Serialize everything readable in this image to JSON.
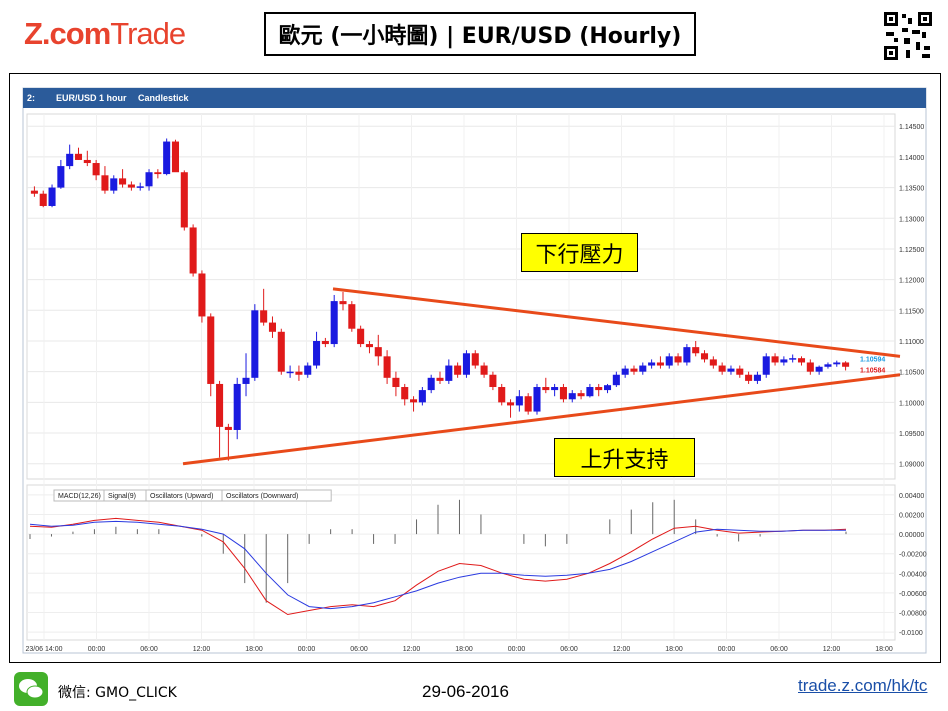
{
  "brand": {
    "z": "Z.com",
    "trade": "Trade"
  },
  "header": {
    "title": "歐元 (一小時圖) | EUR/USD  (Hourly)"
  },
  "toolbar": {
    "symbol": "EUR/USD",
    "timeframe": "1 hour",
    "chart_style": "Candlestick",
    "index": "2:"
  },
  "annotations": {
    "resistance": "下行壓力",
    "support": "上升支持"
  },
  "price_labels": {
    "ask": "1.10594",
    "bid": "1.10584"
  },
  "indicator_legend": [
    "MACD(12,26)",
    "Signal(9)",
    "Oscillators (Upward)",
    "Oscillators (Downward)"
  ],
  "footer": {
    "wechat_label": "微信: GMO_CLICK",
    "date": "29-06-2016",
    "url": "trade.z.com/hk/tc"
  },
  "colors": {
    "brand": "#e8432e",
    "up_candle": "#1a1ae0",
    "down_candle": "#e01a1a",
    "trendline": "#e84a1a",
    "callout_bg": "#ffff00"
  },
  "chart_data": [
    {
      "type": "candlestick",
      "title": "EUR/USD 1 hour Candlestick",
      "y_ticks": [
        "1.14500",
        "1.14000",
        "1.13500",
        "1.13000",
        "1.12500",
        "1.12000",
        "1.11500",
        "1.11000",
        "1.10500",
        "1.10000",
        "1.09500",
        "1.09000"
      ],
      "ylim": [
        1.088,
        1.1465
      ],
      "x_ticks": [
        "23/06 14:00",
        "00:00",
        "06:00",
        "12:00",
        "18:00",
        "00:00",
        "06:00",
        "12:00",
        "18:00",
        "00:00",
        "06:00",
        "12:00",
        "18:00",
        "00:00",
        "06:00",
        "12:00",
        "18:00"
      ],
      "ohlc": [
        [
          1.1345,
          1.1352,
          1.1335,
          1.134
        ],
        [
          1.134,
          1.1345,
          1.1318,
          1.132
        ],
        [
          1.132,
          1.1355,
          1.1318,
          1.135
        ],
        [
          1.135,
          1.1395,
          1.1348,
          1.1385
        ],
        [
          1.1385,
          1.142,
          1.138,
          1.1405
        ],
        [
          1.1405,
          1.1415,
          1.1395,
          1.1395
        ],
        [
          1.1395,
          1.141,
          1.1385,
          1.139
        ],
        [
          1.139,
          1.1395,
          1.1362,
          1.137
        ],
        [
          1.137,
          1.1385,
          1.134,
          1.1345
        ],
        [
          1.1345,
          1.137,
          1.134,
          1.1365
        ],
        [
          1.1365,
          1.138,
          1.135,
          1.1355
        ],
        [
          1.1355,
          1.136,
          1.1345,
          1.135
        ],
        [
          1.135,
          1.1358,
          1.1345,
          1.1352
        ],
        [
          1.1352,
          1.138,
          1.1345,
          1.1375
        ],
        [
          1.1375,
          1.138,
          1.1365,
          1.1372
        ],
        [
          1.1372,
          1.143,
          1.137,
          1.1425
        ],
        [
          1.1425,
          1.1428,
          1.138,
          1.1375
        ],
        [
          1.1375,
          1.1378,
          1.128,
          1.1285
        ],
        [
          1.1285,
          1.129,
          1.1205,
          1.121
        ],
        [
          1.121,
          1.1215,
          1.113,
          1.114
        ],
        [
          1.114,
          1.1145,
          1.101,
          1.103
        ],
        [
          1.103,
          1.1035,
          1.091,
          1.096
        ],
        [
          1.096,
          1.0965,
          1.0905,
          1.0955
        ],
        [
          1.0955,
          1.104,
          1.094,
          1.103
        ],
        [
          1.103,
          1.108,
          1.101,
          1.104
        ],
        [
          1.104,
          1.116,
          1.1035,
          1.115
        ],
        [
          1.115,
          1.1185,
          1.1125,
          1.113
        ],
        [
          1.113,
          1.114,
          1.1105,
          1.1115
        ],
        [
          1.1115,
          1.112,
          1.1045,
          1.105
        ],
        [
          1.105,
          1.106,
          1.104,
          1.105
        ],
        [
          1.105,
          1.106,
          1.1035,
          1.1045
        ],
        [
          1.1045,
          1.1065,
          1.104,
          1.106
        ],
        [
          1.106,
          1.1115,
          1.1055,
          1.11
        ],
        [
          1.11,
          1.1105,
          1.109,
          1.1095
        ],
        [
          1.1095,
          1.1175,
          1.109,
          1.1165
        ],
        [
          1.1165,
          1.118,
          1.115,
          1.116
        ],
        [
          1.116,
          1.1165,
          1.1115,
          1.112
        ],
        [
          1.112,
          1.1125,
          1.109,
          1.1095
        ],
        [
          1.1095,
          1.11,
          1.108,
          1.109
        ],
        [
          1.109,
          1.111,
          1.106,
          1.1075
        ],
        [
          1.1075,
          1.1085,
          1.103,
          1.104
        ],
        [
          1.104,
          1.105,
          1.101,
          1.1025
        ],
        [
          1.1025,
          1.103,
          1.0995,
          1.1005
        ],
        [
          1.1005,
          1.101,
          1.0985,
          1.1
        ],
        [
          1.1,
          1.1025,
          1.0995,
          1.102
        ],
        [
          1.102,
          1.1045,
          1.1015,
          1.104
        ],
        [
          1.104,
          1.105,
          1.103,
          1.1035
        ],
        [
          1.1035,
          1.107,
          1.103,
          1.106
        ],
        [
          1.106,
          1.1065,
          1.104,
          1.1045
        ],
        [
          1.1045,
          1.1085,
          1.104,
          1.108
        ],
        [
          1.108,
          1.1085,
          1.1055,
          1.106
        ],
        [
          1.106,
          1.1065,
          1.104,
          1.1045
        ],
        [
          1.1045,
          1.105,
          1.102,
          1.1025
        ],
        [
          1.1025,
          1.103,
          1.0995,
          1.1
        ],
        [
          1.1,
          1.1005,
          1.0975,
          1.0995
        ],
        [
          1.0995,
          1.102,
          1.0985,
          1.101
        ],
        [
          1.101,
          1.1015,
          1.098,
          1.0985
        ],
        [
          1.0985,
          1.103,
          1.098,
          1.1025
        ],
        [
          1.1025,
          1.104,
          1.1015,
          1.102
        ],
        [
          1.102,
          1.103,
          1.101,
          1.1025
        ],
        [
          1.1025,
          1.103,
          1.1,
          1.1005
        ],
        [
          1.1005,
          1.102,
          1.1,
          1.1015
        ],
        [
          1.1015,
          1.102,
          1.1005,
          1.101
        ],
        [
          1.101,
          1.103,
          1.1008,
          1.1025
        ],
        [
          1.1025,
          1.103,
          1.101,
          1.102
        ],
        [
          1.102,
          1.103,
          1.1015,
          1.1028
        ],
        [
          1.1028,
          1.105,
          1.1025,
          1.1045
        ],
        [
          1.1045,
          1.106,
          1.104,
          1.1055
        ],
        [
          1.1055,
          1.106,
          1.1045,
          1.105
        ],
        [
          1.105,
          1.1065,
          1.1045,
          1.106
        ],
        [
          1.106,
          1.107,
          1.1055,
          1.1065
        ],
        [
          1.1065,
          1.1075,
          1.1055,
          1.106
        ],
        [
          1.106,
          1.108,
          1.1055,
          1.1075
        ],
        [
          1.1075,
          1.108,
          1.106,
          1.1065
        ],
        [
          1.1065,
          1.1095,
          1.106,
          1.109
        ],
        [
          1.109,
          1.11,
          1.1075,
          1.108
        ],
        [
          1.108,
          1.1085,
          1.1065,
          1.107
        ],
        [
          1.107,
          1.1075,
          1.1055,
          1.106
        ],
        [
          1.106,
          1.1065,
          1.1045,
          1.105
        ],
        [
          1.105,
          1.106,
          1.1045,
          1.1055
        ],
        [
          1.1055,
          1.106,
          1.104,
          1.1045
        ],
        [
          1.1045,
          1.105,
          1.103,
          1.1035
        ],
        [
          1.1035,
          1.105,
          1.103,
          1.1045
        ],
        [
          1.1045,
          1.108,
          1.104,
          1.1075
        ],
        [
          1.1075,
          1.108,
          1.106,
          1.1065
        ],
        [
          1.1065,
          1.1075,
          1.106,
          1.107
        ],
        [
          1.107,
          1.1078,
          1.1065,
          1.1072
        ],
        [
          1.1072,
          1.1075,
          1.106,
          1.1065
        ],
        [
          1.1065,
          1.107,
          1.1045,
          1.105
        ],
        [
          1.105,
          1.106,
          1.1045,
          1.1058
        ],
        [
          1.1058,
          1.1065,
          1.1055,
          1.1062
        ],
        [
          1.1062,
          1.1068,
          1.1058,
          1.1065
        ],
        [
          1.1065,
          1.1067,
          1.1052,
          1.1058
        ]
      ],
      "trendlines": [
        {
          "name": "resistance",
          "from": [
            1.1185,
            0
          ],
          "to": [
            1.1075,
            1
          ]
        },
        {
          "name": "support",
          "from": [
            1.09,
            0
          ],
          "to": [
            1.1045,
            1
          ]
        }
      ]
    },
    {
      "type": "line",
      "title": "MACD",
      "y_ticks": [
        "0.00400",
        "0.00200",
        "0.00000",
        "-0.00200",
        "-0.00400",
        "-0.00600",
        "-0.00800",
        "-0.0100"
      ],
      "ylim": [
        -0.0105,
        0.0045
      ],
      "series": [
        {
          "name": "MACD(12,26)",
          "values": [
            0.0008,
            0.0007,
            0.001,
            0.0014,
            0.0016,
            0.0014,
            0.0012,
            0.0008,
            0.0004,
            -0.0008,
            -0.0035,
            -0.0068,
            -0.0082,
            -0.0078,
            -0.0074,
            -0.0072,
            -0.0074,
            -0.0068,
            -0.0052,
            -0.0038,
            -0.003,
            -0.0032,
            -0.004,
            -0.0046,
            -0.0048,
            -0.0046,
            -0.004,
            -0.003,
            -0.0018,
            -0.0005,
            0.0006,
            0.0008,
            0.0004,
            0.0001,
            0.0002,
            0.0003,
            0.0004,
            0.0004,
            0.0005
          ]
        },
        {
          "name": "Signal(9)",
          "values": [
            0.001,
            0.0008,
            0.0009,
            0.0012,
            0.0013,
            0.0012,
            0.001,
            0.0008,
            0.0005,
            0.0,
            -0.0015,
            -0.004,
            -0.0062,
            -0.0074,
            -0.0076,
            -0.0074,
            -0.007,
            -0.0064,
            -0.0058,
            -0.005,
            -0.0044,
            -0.004,
            -0.004,
            -0.0042,
            -0.0043,
            -0.0042,
            -0.004,
            -0.0036,
            -0.0028,
            -0.0018,
            -0.0008,
            0.0002,
            0.0005,
            0.0004,
            0.0003,
            0.0003,
            0.0004,
            0.0004,
            0.0004
          ]
        }
      ]
    }
  ]
}
